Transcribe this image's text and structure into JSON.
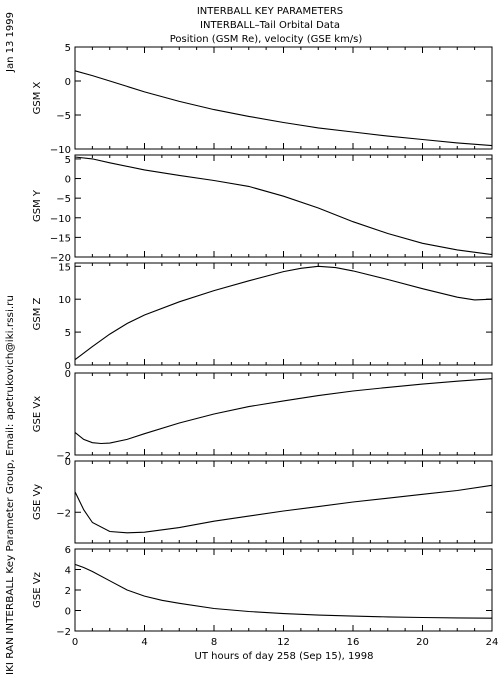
{
  "side_date": "Jan 13 1999",
  "side_credit": "IKI RAN INTERBALL Key Parameter Group, Email: apetrukovich@iki.rssi.ru",
  "title_lines": [
    "INTERBALL KEY PARAMETERS",
    "INTERBALL–Tail Orbital Data",
    "Position (GSM Re), velocity (GSE km/s)"
  ],
  "colors": {
    "line": "#000000",
    "background": "#ffffff"
  },
  "chart_data": [
    {
      "type": "line",
      "ylabel": "GSM X",
      "ylim": [
        -10,
        5
      ],
      "yticks": [
        5,
        0,
        -5,
        -10
      ],
      "xlim": [
        0,
        24
      ],
      "grid": false,
      "x": [
        0,
        1,
        2,
        3,
        4,
        6,
        8,
        10,
        12,
        14,
        16,
        18,
        20,
        22,
        24
      ],
      "values": [
        1.5,
        0.8,
        0,
        -0.8,
        -1.6,
        -3.0,
        -4.2,
        -5.2,
        -6.1,
        -6.9,
        -7.5,
        -8.1,
        -8.6,
        -9.1,
        -9.5
      ]
    },
    {
      "type": "line",
      "ylabel": "GSM Y",
      "ylim": [
        -20,
        6
      ],
      "yticks": [
        5,
        0,
        -5,
        -10,
        -15,
        -20
      ],
      "xlim": [
        0,
        24
      ],
      "grid": false,
      "x": [
        0,
        1,
        2,
        4,
        6,
        8,
        10,
        12,
        14,
        16,
        18,
        20,
        22,
        24
      ],
      "values": [
        5.5,
        5,
        4,
        2.2,
        0.8,
        -0.5,
        -2,
        -4.5,
        -7.5,
        -11,
        -14,
        -16.5,
        -18.2,
        -19.4
      ]
    },
    {
      "type": "line",
      "ylabel": "GSM Z",
      "ylim": [
        0,
        15.5
      ],
      "yticks": [
        15,
        10,
        5,
        0
      ],
      "xlim": [
        0,
        24
      ],
      "grid": false,
      "x": [
        0,
        1,
        2,
        3,
        4,
        6,
        8,
        10,
        12,
        13,
        14,
        15,
        16,
        18,
        20,
        22,
        23,
        24
      ],
      "values": [
        0.8,
        2.8,
        4.7,
        6.3,
        7.6,
        9.6,
        11.3,
        12.8,
        14.2,
        14.7,
        15.0,
        14.8,
        14.3,
        13.0,
        11.6,
        10.3,
        9.9,
        10.0
      ]
    },
    {
      "type": "line",
      "ylabel": "GSE Vx",
      "ylim": [
        -2,
        0
      ],
      "yticks": [
        0,
        -2
      ],
      "xlim": [
        0,
        24
      ],
      "grid": false,
      "x": [
        0,
        0.5,
        1,
        1.5,
        2,
        3,
        4,
        6,
        8,
        10,
        12,
        14,
        16,
        18,
        20,
        22,
        24
      ],
      "values": [
        -1.45,
        -1.62,
        -1.7,
        -1.72,
        -1.71,
        -1.62,
        -1.48,
        -1.22,
        -1.0,
        -0.82,
        -0.68,
        -0.55,
        -0.44,
        -0.35,
        -0.27,
        -0.2,
        -0.14
      ]
    },
    {
      "type": "line",
      "ylabel": "GSE Vy",
      "ylim": [
        -3.2,
        0
      ],
      "yticks": [
        0,
        -2
      ],
      "xlim": [
        0,
        24
      ],
      "grid": false,
      "x": [
        0,
        0.5,
        1,
        2,
        3,
        4,
        6,
        8,
        10,
        12,
        14,
        16,
        18,
        20,
        22,
        24
      ],
      "values": [
        -1.2,
        -1.9,
        -2.4,
        -2.75,
        -2.8,
        -2.78,
        -2.6,
        -2.35,
        -2.15,
        -1.95,
        -1.78,
        -1.6,
        -1.45,
        -1.3,
        -1.15,
        -0.95
      ]
    },
    {
      "type": "line",
      "ylabel": "GSE Vz",
      "ylim": [
        -2,
        6
      ],
      "yticks": [
        6,
        4,
        2,
        0,
        -2
      ],
      "xlim": [
        0,
        24
      ],
      "grid": false,
      "x": [
        0,
        0.5,
        1,
        2,
        3,
        4,
        5,
        6,
        8,
        10,
        12,
        14,
        16,
        18,
        20,
        22,
        24
      ],
      "values": [
        4.5,
        4.2,
        3.8,
        2.9,
        2.0,
        1.4,
        1.0,
        0.7,
        0.2,
        -0.1,
        -0.3,
        -0.45,
        -0.55,
        -0.62,
        -0.68,
        -0.72,
        -0.75
      ]
    }
  ],
  "x_axis": {
    "label": "UT hours of day 258 (Sep 15), 1998",
    "ticks": [
      0,
      4,
      8,
      12,
      16,
      20,
      24
    ],
    "minor_step": 1
  }
}
